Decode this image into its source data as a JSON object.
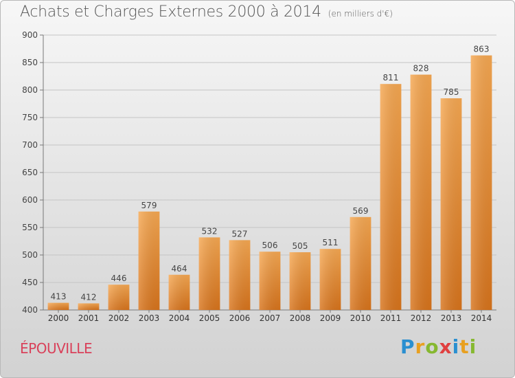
{
  "header": {
    "title": "Achats et Charges Externes 2000 à 2014",
    "subtitle": "(en milliers d'€)"
  },
  "commune": "ÉPOUVILLE",
  "logo": {
    "letters": [
      {
        "ch": "P",
        "color": "#2a8fd0"
      },
      {
        "ch": "r",
        "color": "#e8a020"
      },
      {
        "ch": "o",
        "color": "#86b830"
      },
      {
        "ch": "x",
        "color": "#e04040"
      },
      {
        "ch": "i",
        "color": "#2a8fd0"
      },
      {
        "ch": "t",
        "color": "#e8a020"
      },
      {
        "ch": "i",
        "color": "#86b830"
      }
    ]
  },
  "chart_data": {
    "type": "bar",
    "categories": [
      "2000",
      "2001",
      "2002",
      "2003",
      "2004",
      "2005",
      "2006",
      "2007",
      "2008",
      "2009",
      "2010",
      "2011",
      "2012",
      "2013",
      "2014"
    ],
    "values": [
      413,
      412,
      446,
      579,
      464,
      532,
      527,
      506,
      505,
      511,
      569,
      811,
      828,
      785,
      863
    ],
    "ylim": [
      400,
      900
    ],
    "yticks": [
      400,
      450,
      500,
      550,
      600,
      650,
      700,
      750,
      800,
      850,
      900
    ],
    "grid": true,
    "bar_color_top": "#f6a852",
    "bar_color_bottom": "#d8741c"
  }
}
